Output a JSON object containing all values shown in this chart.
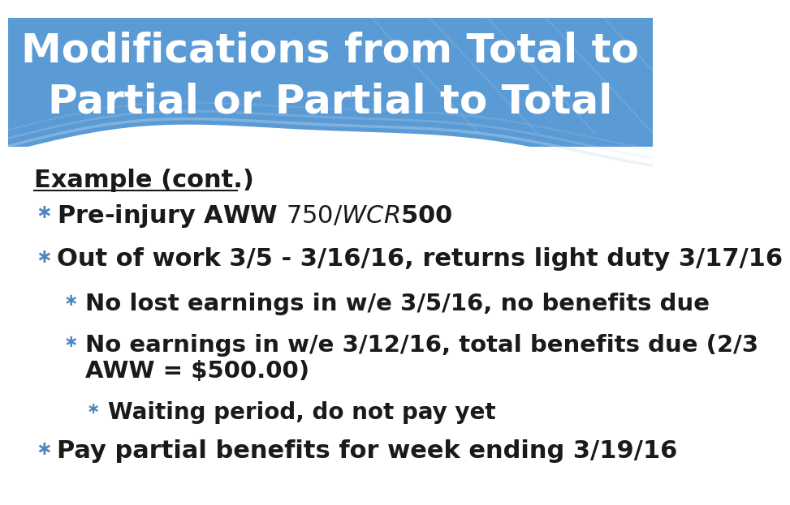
{
  "title_line1": "Modifications from Total to",
  "title_line2": "Partial or Partial to Total",
  "title_color": "#ffffff",
  "title_fontsize": 36,
  "header_bg": "#5b9bd5",
  "bg_color": "#ffffff",
  "section_label": "Example (cont.)",
  "section_label_color": "#1a1a1a",
  "section_label_fontsize": 22,
  "bullet_color": "#4a86c0",
  "text_color": "#1a1a1a",
  "items": [
    {
      "level": 1,
      "text": "Pre-injury AWW $750 / WCR $500",
      "fontsize": 22
    },
    {
      "level": 1,
      "text": "Out of work 3/5 - 3/16/16, returns light duty 3/17/16",
      "fontsize": 22
    },
    {
      "level": 2,
      "text": "No lost earnings in w/e 3/5/16, no benefits due",
      "fontsize": 21
    },
    {
      "level": 2,
      "text": "No earnings in w/e 3/12/16, total benefits due (2/3\nAWW = $500.00)",
      "fontsize": 21
    },
    {
      "level": 3,
      "text": "Waiting period, do not pay yet",
      "fontsize": 20
    },
    {
      "level": 1,
      "text": "Pay partial benefits for week ending 3/19/16",
      "fontsize": 22
    }
  ]
}
